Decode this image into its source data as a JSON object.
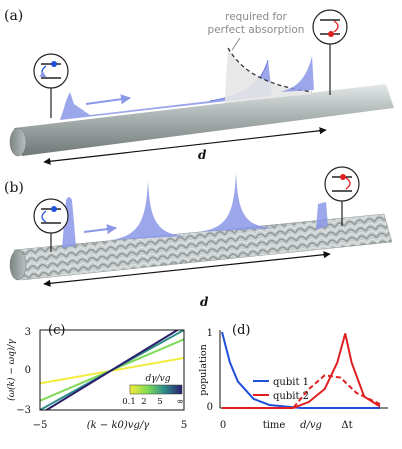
{
  "panels": {
    "a": {
      "label": "(a)",
      "annotation": [
        "required for",
        "perfect absorption"
      ],
      "distance": "d"
    },
    "b": {
      "label": "(b)",
      "distance": "d"
    },
    "c": {
      "label": "(c)",
      "ylabel": "(ω(k) − ωq)/γ",
      "xlabel": "(k − k0)vg/γ",
      "colorbar_label": "dγ/vg",
      "colorbar_ticks": [
        "0.1",
        "2",
        "5",
        "∞"
      ]
    },
    "d": {
      "label": "(d)",
      "ylabel": "population",
      "x_ticks": [
        "0",
        "time",
        "d/vg",
        "Δt"
      ],
      "legend": [
        "qubit 1",
        "qubit 2"
      ]
    }
  },
  "colors": {
    "waveguide": "#9aa3a3",
    "pulse": "#8b98e8",
    "qubit1": "#2050d8",
    "qubit2": "#e02020",
    "absorption_fill": "#e6e6e6"
  },
  "chart_data": [
    {
      "type": "line",
      "panel": "c",
      "xlim": [
        -5,
        5
      ],
      "ylim": [
        -3,
        3
      ],
      "x_ticks": [
        "−5",
        "0",
        "5"
      ],
      "y_ticks": [
        "−3",
        "0",
        "3"
      ],
      "series": [
        {
          "dγ/vg": 0.1,
          "color": "#f4ec3a",
          "x": [
            -5,
            5
          ],
          "y": [
            -1.0,
            0.9
          ]
        },
        {
          "dγ/vg": 2,
          "color": "#7ed957",
          "x": [
            -5,
            5
          ],
          "y": [
            -2.3,
            2.3
          ]
        },
        {
          "dγ/vg": 5,
          "color": "#2f8f8a",
          "x": [
            -5,
            5
          ],
          "y": [
            -3.0,
            3.0
          ]
        },
        {
          "dγ/vg": "∞",
          "color": "#2b1f6e",
          "x": [
            -5,
            5
          ],
          "y": [
            -3.3,
            3.3
          ]
        }
      ]
    },
    {
      "type": "line",
      "panel": "d",
      "ylim": [
        0,
        1
      ],
      "y_ticks": [
        "0",
        "1"
      ],
      "series": [
        {
          "name": "qubit 1",
          "color": "#2050d8",
          "style": "solid",
          "x": [
            0,
            0.05,
            0.1,
            0.2,
            0.3,
            0.5,
            1.0
          ],
          "y": [
            1.0,
            0.6,
            0.35,
            0.12,
            0.04,
            0.0,
            0.0
          ]
        },
        {
          "name": "qubit 2",
          "color": "#e02020",
          "style": "dashed",
          "x": [
            0,
            0.45,
            0.55,
            0.65,
            0.75,
            0.85,
            1.0
          ],
          "y": [
            0,
            0,
            0.25,
            0.43,
            0.4,
            0.2,
            0.05
          ]
        },
        {
          "name": "qubit 2",
          "color": "#e02020",
          "style": "solid",
          "x": [
            0,
            0.45,
            0.55,
            0.65,
            0.73,
            0.78,
            0.82,
            0.9,
            1.0
          ],
          "y": [
            0,
            0,
            0.08,
            0.25,
            0.6,
            0.98,
            0.6,
            0.15,
            0.02
          ]
        }
      ]
    }
  ]
}
